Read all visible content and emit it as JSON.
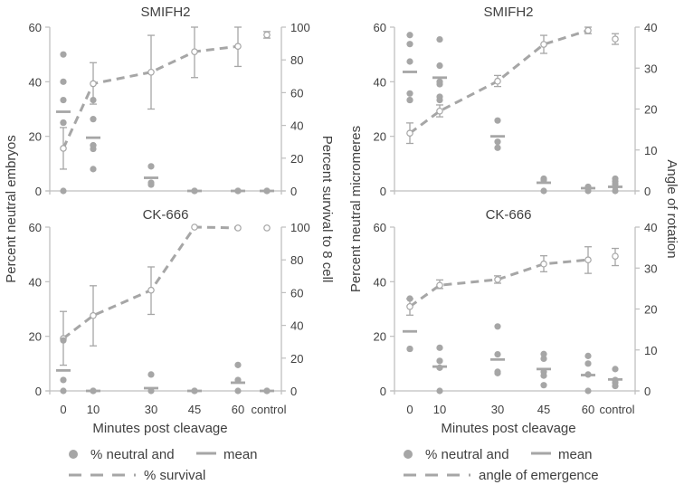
{
  "figure": {
    "x_axis_label": "Minutes post cleavage",
    "left_column_left_ylabel": "Percent neutral embryos",
    "left_column_right_ylabel": "Percent survival to 8 cell",
    "right_column_left_ylabel": "Percent neutral micromeres",
    "right_column_right_ylabel": "Angle of rotation",
    "colors": {
      "points": "#a6a6a6",
      "mean": "#a6a6a6",
      "line": "#a6a6a6",
      "axis": "#bfbfbf",
      "text": "#404040"
    },
    "legends": [
      {
        "points_label": "% neutral and",
        "mean_label": "mean",
        "line_label": "% survival"
      },
      {
        "points_label": "% neutral and",
        "mean_label": "mean",
        "line_label": "angle of emergence"
      }
    ]
  },
  "chart_data": [
    {
      "type": "scatter",
      "panel": "top-left",
      "title": "SMIFH2",
      "categories": [
        "0",
        "10",
        "30",
        "45",
        "60",
        "control"
      ],
      "show_xticks": false,
      "ylabel": "Percent neutral embryos",
      "ylim": [
        0,
        60
      ],
      "yticks": [
        0,
        20,
        40,
        60
      ],
      "y2label": "Percent survival to 8 cell",
      "y2lim": [
        0,
        100
      ],
      "y2ticks": [
        0,
        20,
        40,
        60,
        80,
        100
      ],
      "points": [
        [
          0,
          25,
          25,
          33.3,
          40,
          50
        ],
        [
          8,
          15.4,
          16.7,
          16.7,
          26.3,
          33.3
        ],
        [
          2.3,
          3,
          9
        ],
        [
          0,
          0
        ],
        [
          0,
          0
        ],
        [
          0,
          0
        ]
      ],
      "means": [
        29,
        19.5,
        4.8,
        0,
        0,
        0
      ],
      "line_series": {
        "name": "% survival",
        "values": [
          26,
          65.5,
          72.5,
          85,
          88.3
        ],
        "errors": [
          [
            13.3,
            38.7
          ],
          [
            53,
            78.3
          ],
          [
            50,
            95
          ],
          [
            69.2,
            100
          ],
          [
            76,
            100
          ]
        ]
      },
      "control_point": {
        "value": 95.3,
        "error": [
          93.3,
          97.3
        ]
      },
      "legend": "bottom"
    },
    {
      "type": "scatter",
      "panel": "bottom-left",
      "title": "CK-666",
      "categories": [
        "0",
        "10",
        "30",
        "45",
        "60",
        "control"
      ],
      "show_xticks": true,
      "ylabel": "Percent neutral embryos",
      "ylim": [
        0,
        60
      ],
      "yticks": [
        0,
        20,
        40,
        60
      ],
      "y2label": "Percent survival to 8 cell",
      "y2lim": [
        0,
        100
      ],
      "y2ticks": [
        0,
        20,
        40,
        60,
        80,
        100
      ],
      "points": [
        [
          0,
          4,
          18.5
        ],
        [
          0,
          0
        ],
        [
          0,
          6
        ],
        [
          0,
          0
        ],
        [
          0,
          4,
          9.5
        ],
        [
          0,
          0
        ]
      ],
      "means": [
        7.5,
        0,
        1,
        0,
        3,
        0
      ],
      "line_series": {
        "name": "% survival",
        "values": [
          32,
          46,
          61.5,
          100,
          99.5
        ],
        "errors": [
          [
            15.7,
            48.5
          ],
          [
            27.5,
            64.2
          ],
          [
            46.7,
            75.7
          ],
          [
            100,
            100
          ],
          [
            99.5,
            99.5
          ]
        ]
      },
      "control_point": {
        "value": 99.5,
        "error": [
          99.5,
          99.5
        ]
      },
      "legend": "bottom"
    },
    {
      "type": "scatter",
      "panel": "top-right",
      "title": "SMIFH2",
      "categories": [
        "0",
        "10",
        "30",
        "45",
        "60",
        "control"
      ],
      "show_xticks": false,
      "ylabel": "Percent neutral micromeres",
      "ylim": [
        0,
        60
      ],
      "yticks": [
        0,
        20,
        40,
        60
      ],
      "y2label": "Angle of rotation",
      "y2lim": [
        0,
        40
      ],
      "y2ticks": [
        0,
        10,
        20,
        30,
        40
      ],
      "points": [
        [
          33.3,
          33.3,
          35.7,
          47.4,
          53.8,
          57.1
        ],
        [
          33.3,
          34.5,
          39.1,
          40,
          45.9,
          55.5
        ],
        [
          15.8,
          18,
          25.8
        ],
        [
          0,
          4.5,
          4
        ],
        [
          0,
          1,
          1.5
        ],
        [
          0,
          1.5,
          2.5,
          3.5,
          4.5
        ]
      ],
      "means": [
        43.6,
        41.5,
        20,
        3,
        1,
        1.5
      ],
      "line_series": {
        "name": "angle of emergence",
        "values": [
          14.1,
          19.5,
          26.8,
          35.8,
          39.2
        ],
        "errors": [
          [
            11.6,
            16.6
          ],
          [
            18.1,
            21
          ],
          [
            25.5,
            28.2
          ],
          [
            33.6,
            38
          ],
          [
            38.4,
            40
          ]
        ]
      },
      "control_point": {
        "value": 37.1,
        "error": [
          35.8,
          38.4
        ]
      },
      "legend": "bottom"
    },
    {
      "type": "scatter",
      "panel": "bottom-right",
      "title": "CK-666",
      "categories": [
        "0",
        "10",
        "30",
        "45",
        "60",
        "control"
      ],
      "show_xticks": true,
      "ylabel": "Percent neutral micromeres",
      "ylim": [
        0,
        60
      ],
      "yticks": [
        0,
        20,
        40,
        60
      ],
      "y2label": "Angle of rotation",
      "y2lim": [
        0,
        40
      ],
      "y2ticks": [
        0,
        10,
        20,
        30,
        40
      ],
      "points": [
        [
          15.4,
          15.4,
          33.8
        ],
        [
          0,
          8.5,
          11,
          15.8
        ],
        [
          6.5,
          7,
          13.4,
          23.6
        ],
        [
          2.1,
          5.6,
          7,
          11.8,
          13.5
        ],
        [
          0,
          6,
          10,
          12.8
        ],
        [
          1.8,
          3,
          4,
          8
        ]
      ],
      "means": [
        21.8,
        8.9,
        11.5,
        8,
        5.8,
        4.2
      ],
      "line_series": {
        "name": "angle of emergence",
        "values": [
          20.6,
          25.8,
          27.2,
          31,
          32
        ],
        "errors": [
          [
            18.5,
            22.5
          ],
          [
            25,
            27.1
          ],
          [
            26.3,
            28.1
          ],
          [
            29.1,
            33
          ],
          [
            28.7,
            35.2
          ]
        ]
      },
      "control_point": {
        "value": 32.9,
        "error": [
          30.6,
          34.8
        ]
      },
      "legend": "bottom"
    }
  ]
}
